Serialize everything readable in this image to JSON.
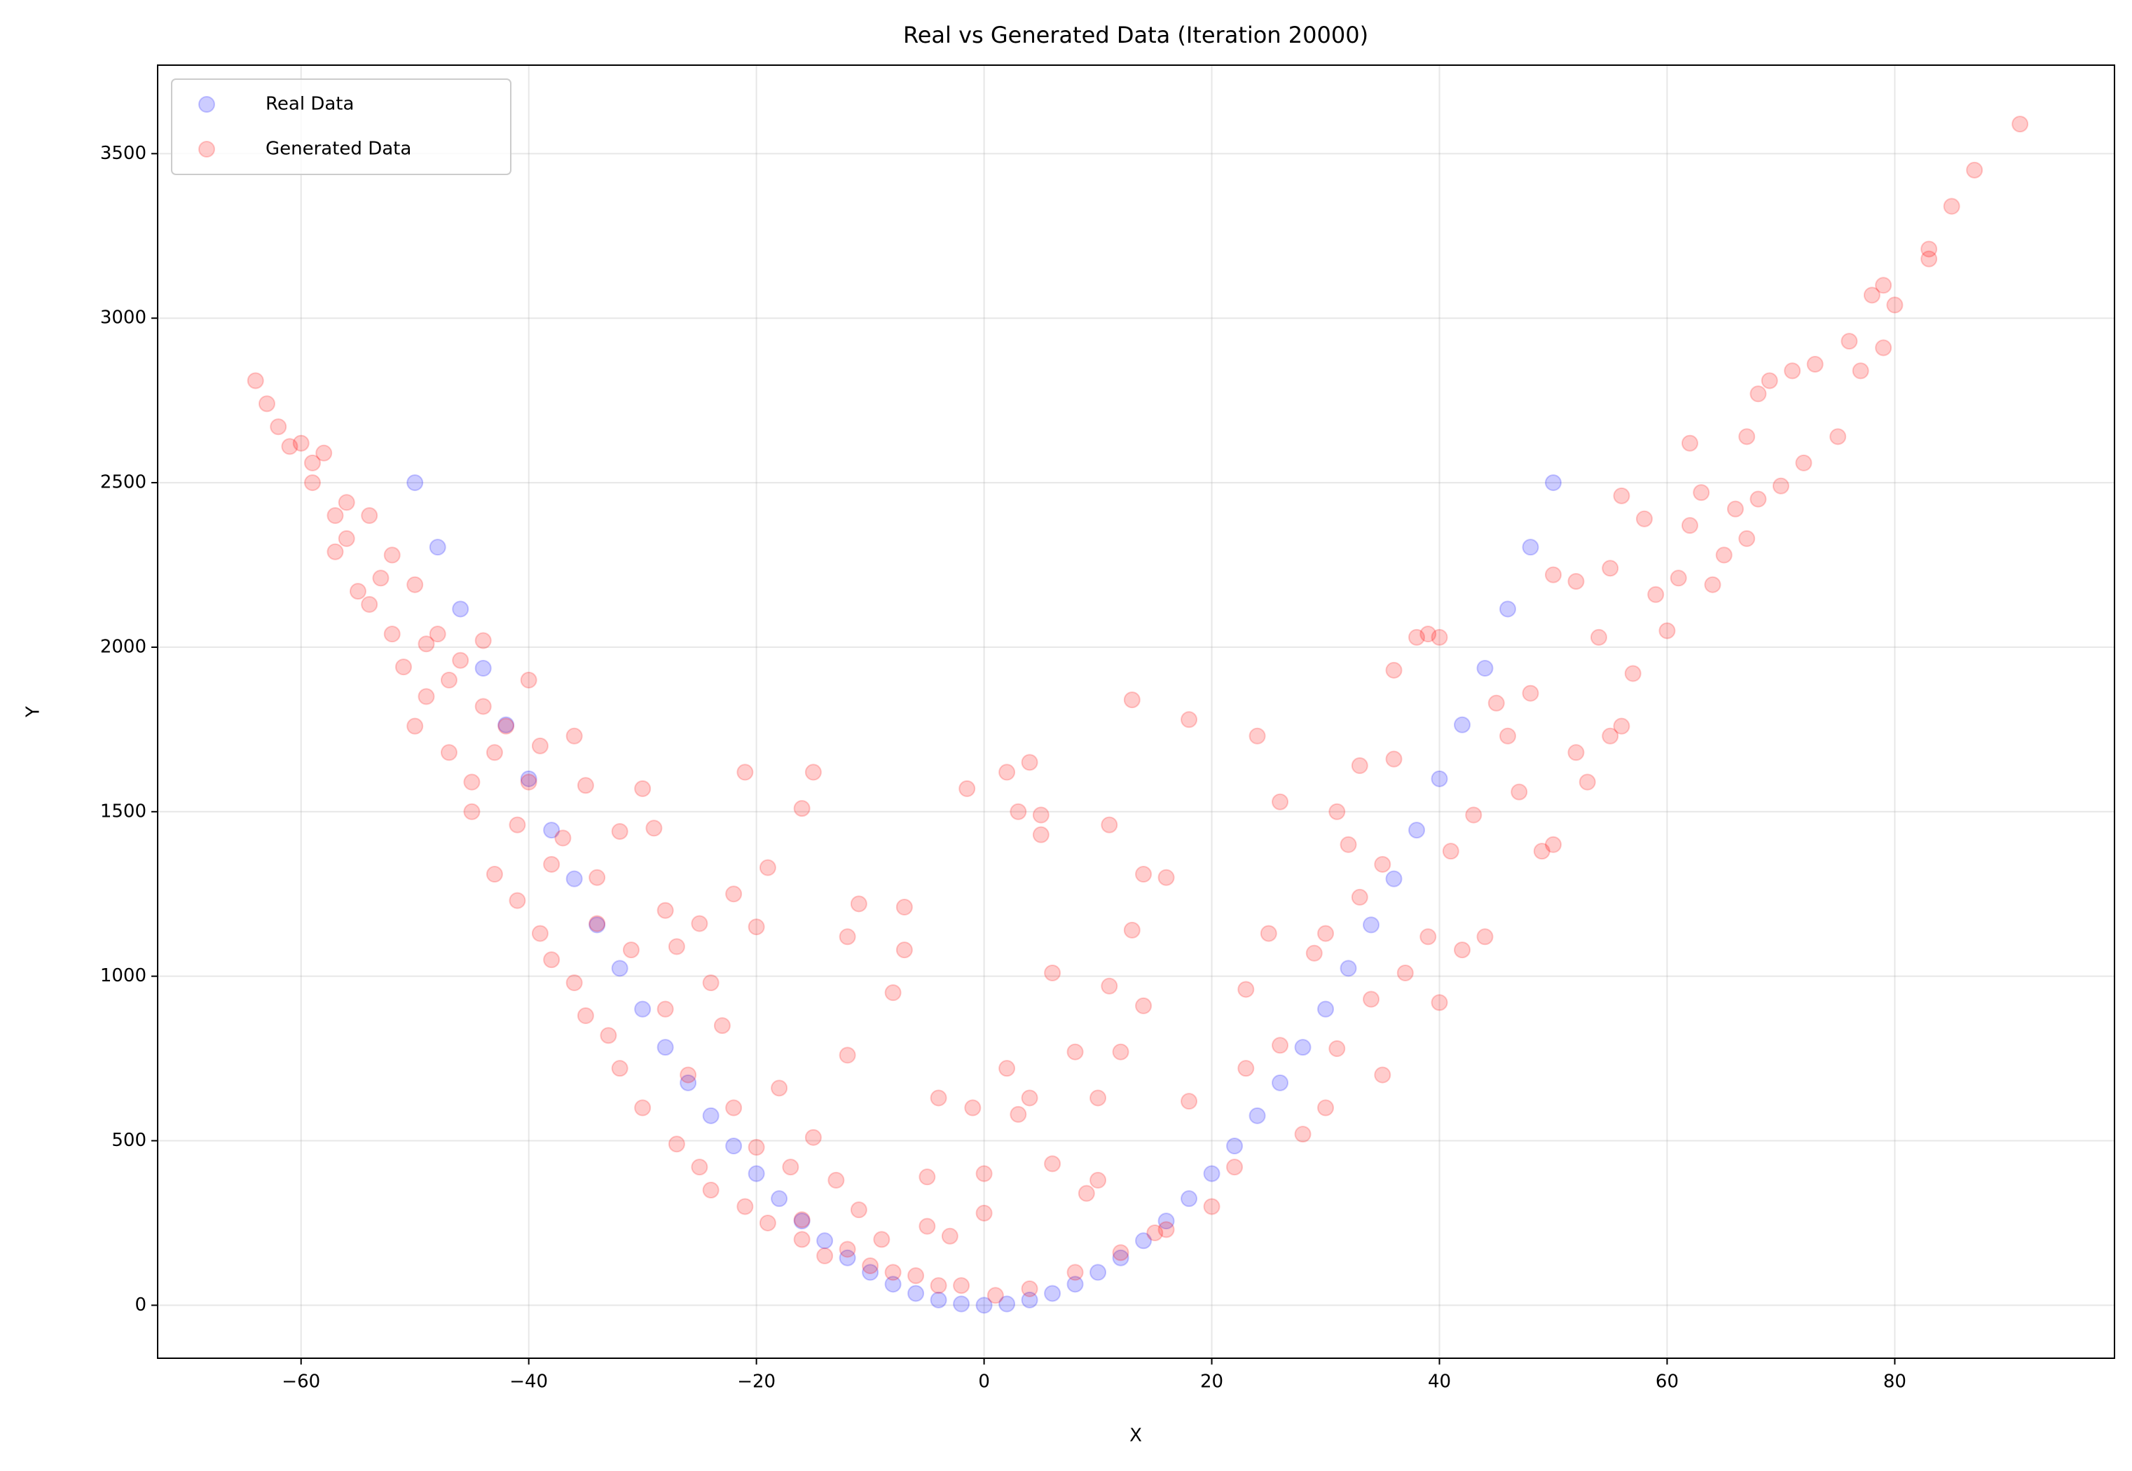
{
  "chart_data": {
    "type": "scatter",
    "title": "Real vs Generated Data (Iteration 20000)",
    "x_label": "X",
    "y_label": "Y",
    "xlim": [
      -72.6,
      99.3
    ],
    "ylim": [
      -161,
      3769
    ],
    "xticks": [
      {
        "value": -60,
        "label": "−60"
      },
      {
        "value": -40,
        "label": "−40"
      },
      {
        "value": -20,
        "label": "−20"
      },
      0,
      20,
      40,
      60,
      80
    ],
    "yticks": [
      0,
      500,
      1000,
      1500,
      2000,
      2500,
      3000,
      3500
    ],
    "grid": true,
    "legend": "upper left",
    "alpha": 0.2,
    "series": [
      {
        "name": "Real Data",
        "color": "#0000ff",
        "x": [
          -50,
          -48,
          -46,
          -44,
          -42,
          -40,
          -38,
          -36,
          -34,
          -32,
          -30,
          -28,
          -26,
          -24,
          -22,
          -20,
          -18,
          -16,
          -14,
          -12,
          -10,
          -8,
          -6,
          -4,
          -2,
          0,
          2,
          4,
          6,
          8,
          10,
          12,
          14,
          16,
          18,
          20,
          22,
          24,
          26,
          28,
          30,
          32,
          34,
          36,
          38,
          40,
          42,
          44,
          46,
          48,
          50
        ],
        "y": [
          2500,
          2304,
          2116,
          1936,
          1764,
          1600,
          1444,
          1296,
          1156,
          1024,
          900,
          784,
          676,
          576,
          484,
          400,
          324,
          256,
          196,
          144,
          100,
          64,
          36,
          16,
          4,
          0,
          4,
          16,
          36,
          64,
          100,
          144,
          196,
          256,
          324,
          400,
          484,
          576,
          676,
          784,
          900,
          1024,
          1156,
          1296,
          1444,
          1600,
          1764,
          1936,
          2116,
          2304,
          2500
        ]
      },
      {
        "name": "Generated Data",
        "color": "#ff0000",
        "x": [
          -64,
          -63,
          -62,
          -61,
          -60,
          -59,
          -59,
          -58,
          -57,
          -57,
          -56,
          -56,
          -54,
          -55,
          -54,
          -53,
          -52,
          -52,
          -51,
          -50,
          -50,
          -49,
          -49,
          -48,
          -47,
          -47,
          -46,
          -45,
          -45,
          -44,
          -44,
          -43,
          -43,
          -42,
          -41,
          -41,
          -40,
          -40,
          -39,
          -39,
          -38,
          -38,
          -37,
          -36,
          -36,
          -35,
          -35,
          -34,
          -34,
          -33,
          -32,
          -32,
          -31,
          -30,
          -30,
          -29,
          -28,
          -28,
          -27,
          -27,
          -26,
          -25,
          -25,
          -24,
          -24,
          -23,
          -22,
          -22,
          -21,
          -21,
          -20,
          -20,
          -19,
          -19,
          -18,
          -17,
          -16,
          -16,
          -15,
          -15,
          -14,
          -13,
          -12,
          -12,
          -11,
          -11,
          -10,
          -9,
          -8,
          -7,
          -7,
          -6,
          -5,
          -5,
          -4,
          -3,
          -2,
          -1.5,
          -1,
          0,
          0,
          1,
          2,
          2,
          3,
          3,
          4,
          4,
          5,
          5,
          6,
          6,
          8,
          9,
          10,
          10,
          11,
          11,
          12,
          13,
          13,
          14,
          14,
          15,
          16,
          18,
          18,
          20,
          22,
          23,
          23,
          24,
          25,
          26,
          26,
          28,
          29,
          30,
          30,
          31,
          31,
          32,
          33,
          33,
          34,
          35,
          35,
          36,
          36,
          37,
          38,
          39,
          39,
          40,
          40,
          41,
          42,
          43,
          44,
          45,
          46,
          47,
          48,
          49,
          50,
          50,
          52,
          52,
          53,
          54,
          55,
          55,
          56,
          56,
          57,
          58,
          59,
          60,
          61,
          62,
          62,
          63,
          64,
          65,
          66,
          67,
          67,
          68,
          68,
          69,
          70,
          71,
          72,
          73,
          75,
          76,
          77,
          78,
          79,
          79,
          80,
          83,
          83,
          85,
          87,
          91,
          -12,
          -8,
          -4,
          4,
          8,
          12,
          16,
          -16
        ],
        "y": [
          2810,
          2740,
          2670,
          2610,
          2620,
          2560,
          2500,
          2590,
          2400,
          2290,
          2440,
          2330,
          2400,
          2170,
          2130,
          2210,
          2280,
          2040,
          1940,
          2190,
          1760,
          1850,
          2010,
          2040,
          1900,
          1680,
          1960,
          1590,
          1500,
          2020,
          1820,
          1680,
          1310,
          1760,
          1460,
          1230,
          1900,
          1590,
          1130,
          1700,
          1340,
          1050,
          1420,
          1730,
          980,
          1580,
          880,
          1300,
          1160,
          820,
          1440,
          720,
          1080,
          600,
          1570,
          1450,
          1200,
          900,
          490,
          1090,
          700,
          1160,
          420,
          980,
          350,
          850,
          1250,
          600,
          1620,
          300,
          1150,
          480,
          1330,
          250,
          660,
          420,
          1510,
          200,
          1620,
          510,
          150,
          380,
          760,
          1120,
          1220,
          290,
          120,
          200,
          950,
          1210,
          1080,
          90,
          390,
          240,
          630,
          210,
          60,
          1570,
          600,
          400,
          280,
          30,
          1620,
          720,
          1500,
          580,
          630,
          1650,
          1490,
          1430,
          430,
          1010,
          770,
          340,
          630,
          380,
          970,
          1460,
          770,
          1840,
          1140,
          910,
          1310,
          220,
          1300,
          1780,
          620,
          300,
          420,
          720,
          960,
          1730,
          1130,
          1530,
          790,
          520,
          1070,
          1130,
          600,
          1500,
          780,
          1400,
          1240,
          1640,
          930,
          700,
          1340,
          1930,
          1660,
          1010,
          2030,
          1120,
          2040,
          2030,
          920,
          1380,
          1080,
          1490,
          1120,
          1830,
          1730,
          1560,
          1860,
          1380,
          1400,
          2220,
          2200,
          1680,
          1590,
          2030,
          2240,
          1730,
          2460,
          1760,
          1920,
          2390,
          2160,
          2050,
          2210,
          2620,
          2370,
          2470,
          2190,
          2280,
          2420,
          2640,
          2330,
          2770,
          2450,
          2810,
          2490,
          2840,
          2560,
          2860,
          2640,
          2930,
          2840,
          3070,
          3100,
          2910,
          3040,
          3180,
          3210,
          3340,
          3450,
          3590,
          170,
          100,
          60,
          50,
          100,
          160,
          230,
          260
        ]
      }
    ]
  }
}
